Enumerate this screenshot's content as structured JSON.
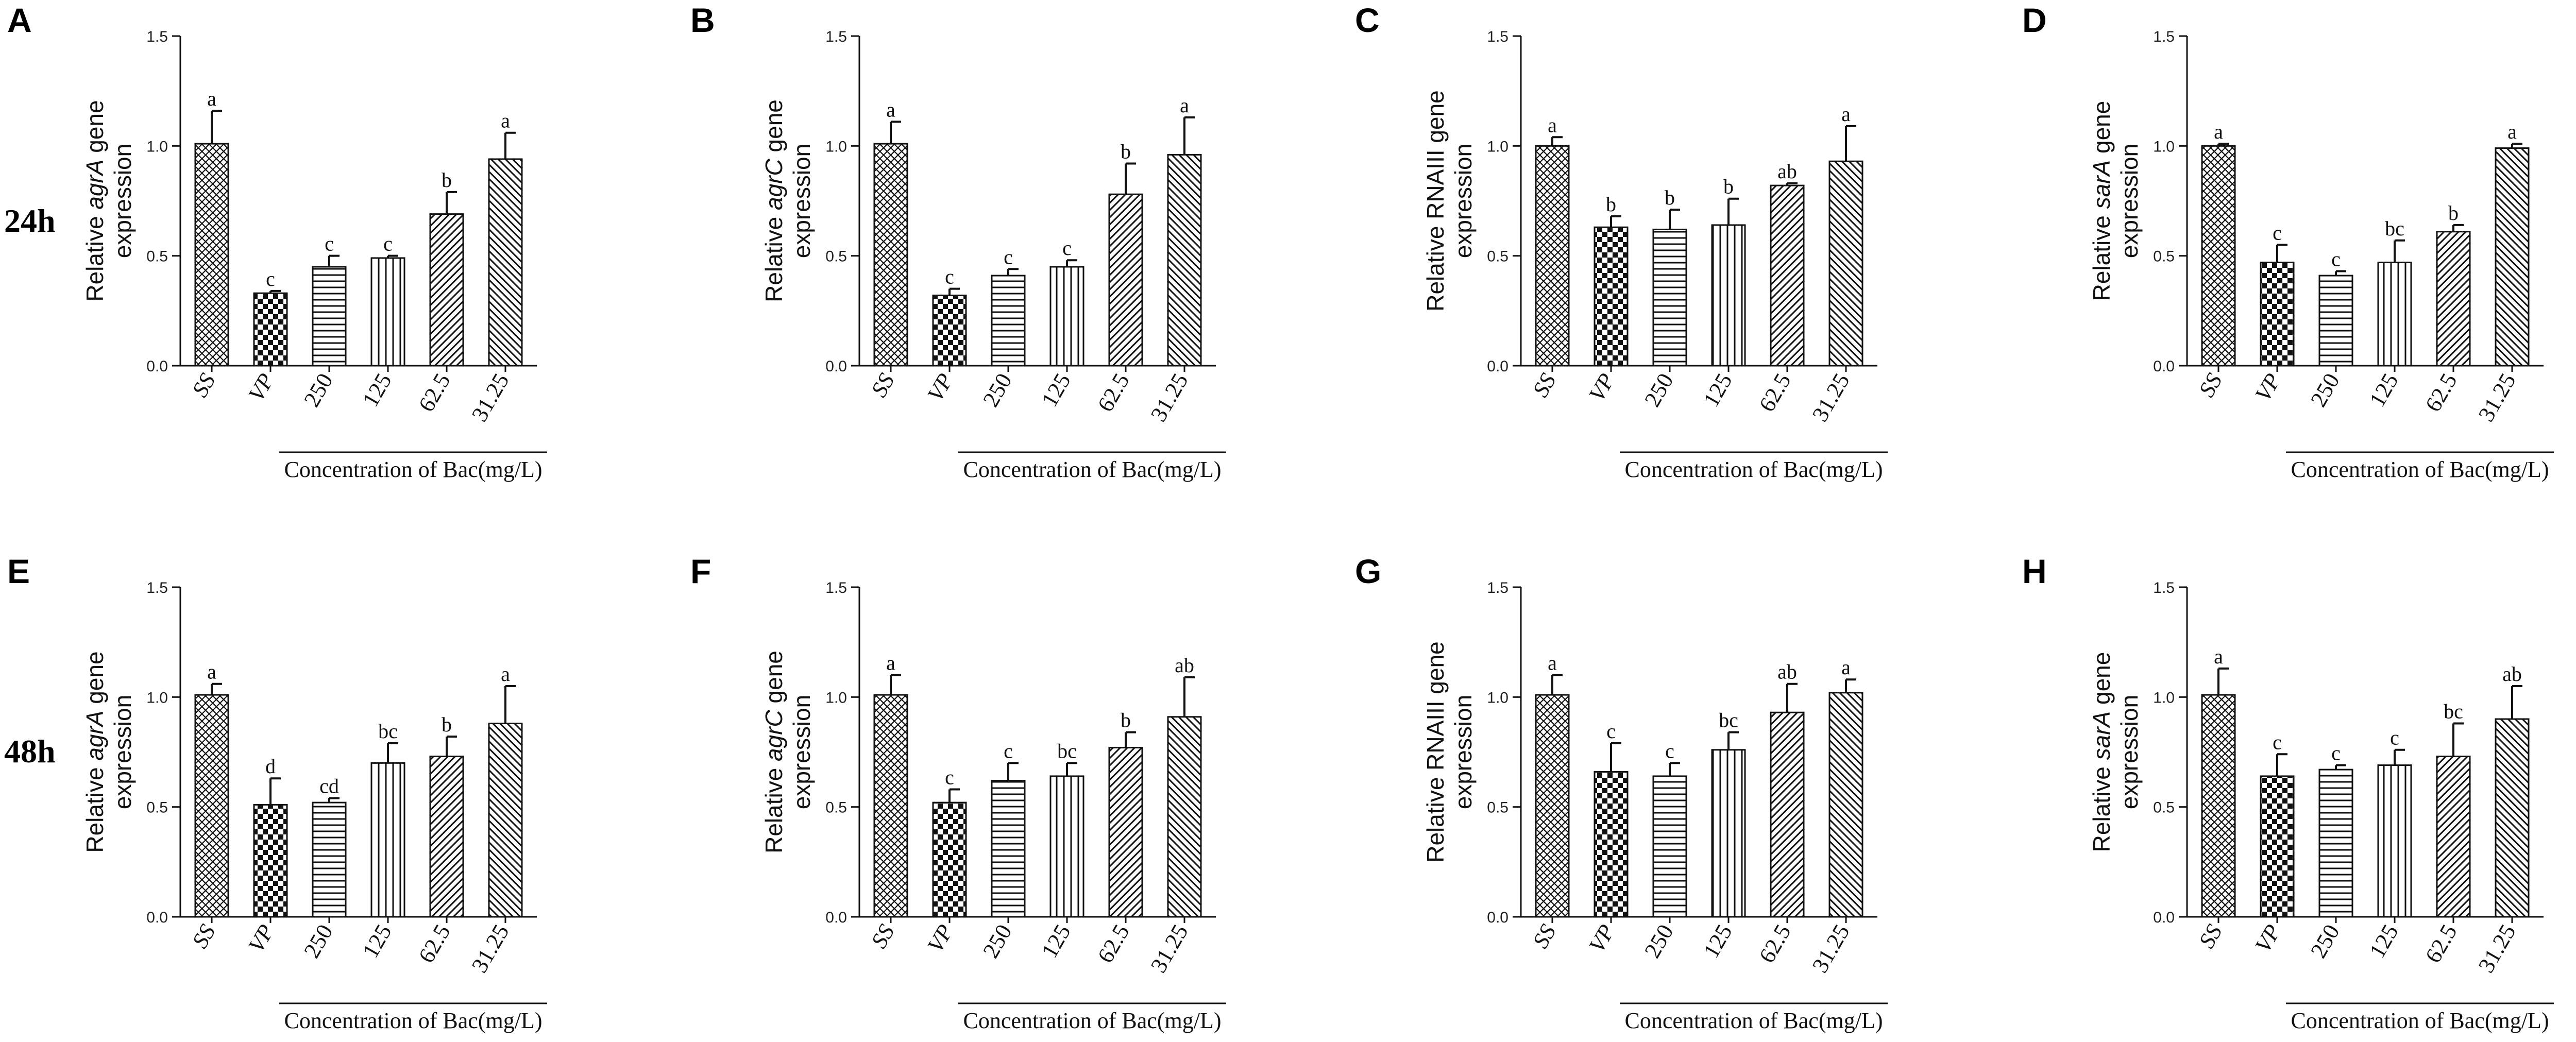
{
  "row_labels": [
    "24h",
    "48h"
  ],
  "chart_data": [
    {
      "type": "bar",
      "letter": "A",
      "time": "24h",
      "ylabel": {
        "pre": "Relative ",
        "gene": "agrA",
        "post": " gene",
        "line2": "expression"
      },
      "categories": [
        "SS",
        "VP",
        "250",
        "125",
        "62.5",
        "31.25"
      ],
      "values": [
        1.01,
        0.33,
        0.45,
        0.49,
        0.69,
        0.94
      ],
      "errors": [
        0.15,
        0.01,
        0.05,
        0.01,
        0.1,
        0.12
      ],
      "letters": [
        "a",
        "c",
        "c",
        "c",
        "b",
        "a"
      ],
      "ylim": [
        0,
        1.5
      ],
      "yticks": [
        "0.0",
        "0.5",
        "1.0",
        "1.5"
      ],
      "group_label": "Concentration of Bac(mg/L)"
    },
    {
      "type": "bar",
      "letter": "B",
      "time": "24h",
      "ylabel": {
        "pre": "Relative ",
        "gene": "agrC",
        "post": " gene",
        "line2": "expression"
      },
      "categories": [
        "SS",
        "VP",
        "250",
        "125",
        "62.5",
        "31.25"
      ],
      "values": [
        1.01,
        0.32,
        0.41,
        0.45,
        0.78,
        0.96
      ],
      "errors": [
        0.1,
        0.03,
        0.03,
        0.03,
        0.14,
        0.17
      ],
      "letters": [
        "a",
        "c",
        "c",
        "c",
        "b",
        "a"
      ],
      "ylim": [
        0,
        1.5
      ],
      "yticks": [
        "0.0",
        "0.5",
        "1.0",
        "1.5"
      ],
      "group_label": "Concentration of Bac(mg/L)"
    },
    {
      "type": "bar",
      "letter": "C",
      "time": "24h",
      "ylabel": {
        "pre": "Relative RNAIII gene",
        "gene": "",
        "post": "",
        "line2": "expression"
      },
      "categories": [
        "SS",
        "VP",
        "250",
        "125",
        "62.5",
        "31.25"
      ],
      "values": [
        1.0,
        0.63,
        0.62,
        0.64,
        0.82,
        0.93
      ],
      "errors": [
        0.04,
        0.05,
        0.09,
        0.12,
        0.01,
        0.16
      ],
      "letters": [
        "a",
        "b",
        "b",
        "b",
        "ab",
        "a"
      ],
      "ylim": [
        0,
        1.5
      ],
      "yticks": [
        "0.0",
        "0.5",
        "1.0",
        "1.5"
      ],
      "group_label": "Concentration of Bac(mg/L)"
    },
    {
      "type": "bar",
      "letter": "D",
      "time": "24h",
      "ylabel": {
        "pre": "Relative ",
        "gene": "sarA",
        "post": " gene",
        "line2": "expression"
      },
      "categories": [
        "SS",
        "VP",
        "250",
        "125",
        "62.5",
        "31.25"
      ],
      "values": [
        1.0,
        0.47,
        0.41,
        0.47,
        0.61,
        0.99
      ],
      "errors": [
        0.01,
        0.08,
        0.02,
        0.1,
        0.03,
        0.02
      ],
      "letters": [
        "a",
        "c",
        "c",
        "bc",
        "b",
        "a"
      ],
      "ylim": [
        0,
        1.5
      ],
      "yticks": [
        "0.0",
        "0.5",
        "1.0",
        "1.5"
      ],
      "group_label": "Concentration of Bac(mg/L)"
    },
    {
      "type": "bar",
      "letter": "E",
      "time": "48h",
      "ylabel": {
        "pre": "Relative ",
        "gene": "agrA",
        "post": " gene",
        "line2": "expression"
      },
      "categories": [
        "SS",
        "VP",
        "250",
        "125",
        "62.5",
        "31.25"
      ],
      "values": [
        1.01,
        0.51,
        0.52,
        0.7,
        0.73,
        0.88
      ],
      "errors": [
        0.05,
        0.12,
        0.02,
        0.09,
        0.09,
        0.17
      ],
      "letters": [
        "a",
        "d",
        "cd",
        "bc",
        "b",
        "a"
      ],
      "ylim": [
        0,
        1.5
      ],
      "yticks": [
        "0.0",
        "0.5",
        "1.0",
        "1.5"
      ],
      "group_label": "Concentration of Bac(mg/L)"
    },
    {
      "type": "bar",
      "letter": "F",
      "time": "48h",
      "ylabel": {
        "pre": "Relative ",
        "gene": "agrC",
        "post": " gene",
        "line2": "expression"
      },
      "categories": [
        "SS",
        "VP",
        "250",
        "125",
        "62.5",
        "31.25"
      ],
      "values": [
        1.01,
        0.52,
        0.62,
        0.64,
        0.77,
        0.91
      ],
      "errors": [
        0.09,
        0.06,
        0.08,
        0.06,
        0.07,
        0.18
      ],
      "letters": [
        "a",
        "c",
        "c",
        "bc",
        "b",
        "ab"
      ],
      "ylim": [
        0,
        1.5
      ],
      "yticks": [
        "0.0",
        "0.5",
        "1.0",
        "1.5"
      ],
      "group_label": "Concentration of Bac(mg/L)"
    },
    {
      "type": "bar",
      "letter": "G",
      "time": "48h",
      "ylabel": {
        "pre": "Relative RNAIII gene",
        "gene": "",
        "post": "",
        "line2": "expression"
      },
      "categories": [
        "SS",
        "VP",
        "250",
        "125",
        "62.5",
        "31.25"
      ],
      "values": [
        1.01,
        0.66,
        0.64,
        0.76,
        0.93,
        1.02
      ],
      "errors": [
        0.09,
        0.13,
        0.06,
        0.08,
        0.13,
        0.06
      ],
      "letters": [
        "a",
        "c",
        "c",
        "bc",
        "ab",
        "a"
      ],
      "ylim": [
        0,
        1.5
      ],
      "yticks": [
        "0.0",
        "0.5",
        "1.0",
        "1.5"
      ],
      "group_label": "Concentration of Bac(mg/L)"
    },
    {
      "type": "bar",
      "letter": "H",
      "time": "48h",
      "ylabel": {
        "pre": "Relative ",
        "gene": "sarA",
        "post": " gene",
        "line2": "expression"
      },
      "categories": [
        "SS",
        "VP",
        "250",
        "125",
        "62.5",
        "31.25"
      ],
      "values": [
        1.01,
        0.64,
        0.67,
        0.69,
        0.73,
        0.9
      ],
      "errors": [
        0.12,
        0.1,
        0.02,
        0.07,
        0.15,
        0.15
      ],
      "letters": [
        "a",
        "c",
        "c",
        "c",
        "bc",
        "ab"
      ],
      "ylim": [
        0,
        1.5
      ],
      "yticks": [
        "0.0",
        "0.5",
        "1.0",
        "1.5"
      ],
      "group_label": "Concentration of Bac(mg/L)"
    }
  ]
}
